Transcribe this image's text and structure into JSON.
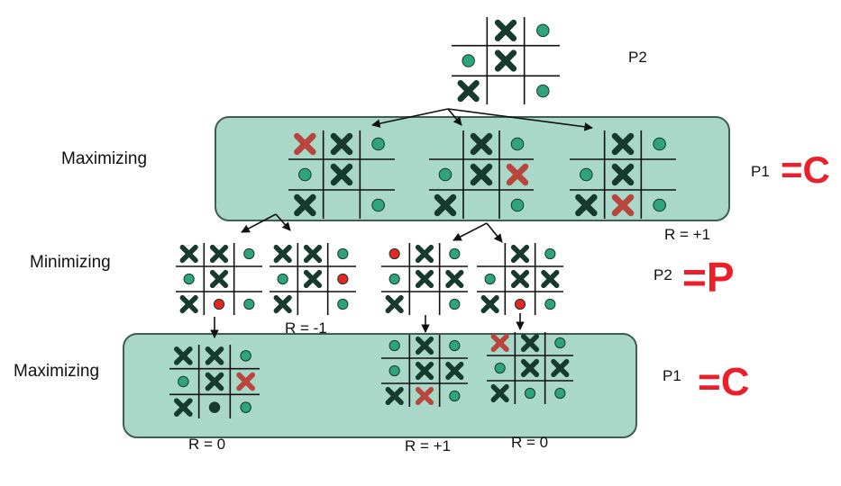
{
  "labels": {
    "max_top": "Maximizing",
    "min": "Minimizing",
    "max_bottom": "Maximizing",
    "p2_top": "P2",
    "p1_a": "P1",
    "p2_b": "P2",
    "p1_b": "P1"
  },
  "handwritten": {
    "p1_a": "=C",
    "p2_b": "=P",
    "p1_b": "=C"
  },
  "rewards": {
    "r_band1": "R = +1",
    "r_min": "R = -1",
    "r_left": "R = 0",
    "r_mid": "R = +1",
    "r_right": "R = 0"
  },
  "colors": {
    "band_fill": "#a9d7c8",
    "x_normal": "#173a2e",
    "x_new": "#b8463c",
    "o_normal": "#2ea37c",
    "o_new": "#e3271f",
    "o_dark": "#173a2e",
    "handwriting": "#ea1f2a"
  },
  "legend_note": "",
  "boards": {
    "root": [
      "",
      "X",
      "O",
      "O",
      "X",
      "",
      "X",
      "",
      "O"
    ],
    "a1": [
      "x",
      "X",
      "O",
      "O",
      "X",
      "",
      "X",
      "",
      "O"
    ],
    "a2": [
      "",
      "X",
      "O",
      "O",
      "X",
      "x",
      "X",
      "",
      "O"
    ],
    "a3": [
      "",
      "X",
      "O",
      "O",
      "X",
      "",
      "X",
      "x",
      "O"
    ],
    "m1": [
      "X",
      "X",
      "O",
      "O",
      "X",
      "",
      "X",
      "o",
      "O"
    ],
    "m2": [
      "X",
      "X",
      "O",
      "O",
      "X",
      "o",
      "X",
      "",
      "O"
    ],
    "m3": [
      "o",
      "X",
      "O",
      "O",
      "X",
      "X",
      "X",
      "",
      "O"
    ],
    "m4": [
      "",
      "X",
      "O",
      "O",
      "X",
      "X",
      "X",
      "o",
      "O"
    ],
    "b1": [
      "X",
      "X",
      "O",
      "O",
      "X",
      "x",
      "X",
      "d",
      "O"
    ],
    "b2": [
      "O",
      "X",
      "O",
      "O",
      "X",
      "X",
      "X",
      "x",
      "O"
    ],
    "b3": [
      "x",
      "X",
      "O",
      "O",
      "X",
      "X",
      "X",
      "O",
      "O"
    ]
  }
}
